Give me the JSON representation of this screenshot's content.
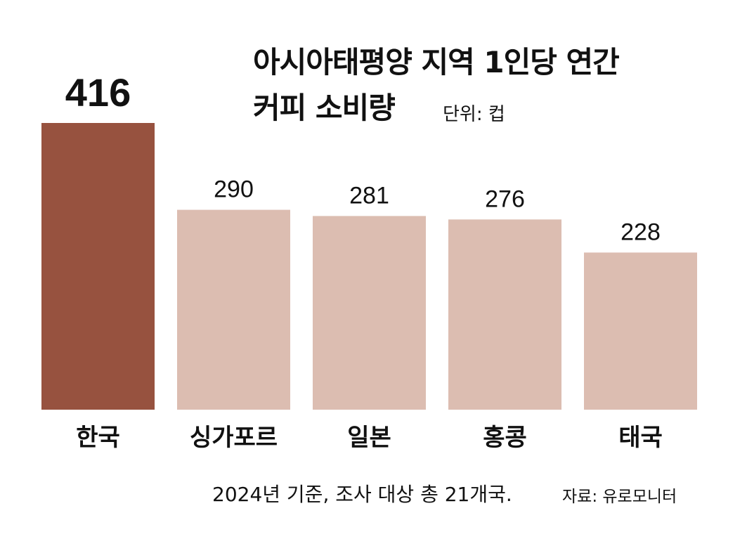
{
  "chart_data": {
    "type": "bar",
    "title_line1": "아시아태평양 지역 1인당 연간",
    "title_line2": "커피 소비량",
    "unit": "단위: 컵",
    "categories": [
      "한국",
      "싱가포르",
      "일본",
      "홍콩",
      "태국"
    ],
    "values": [
      416,
      290,
      281,
      276,
      228
    ],
    "value_labels": [
      "416",
      "290",
      "281",
      "276",
      "228"
    ],
    "highlight_index": 0,
    "ylim": [
      0,
      416
    ],
    "grid": false,
    "legend": "none"
  },
  "colors": {
    "highlight": "#97523f",
    "normal": "#dcbdb1",
    "text": "#111111"
  },
  "footnote": {
    "note": "2024년 기준, 조사 대상 총 21개국.",
    "source": "자료: 유로모니터"
  }
}
